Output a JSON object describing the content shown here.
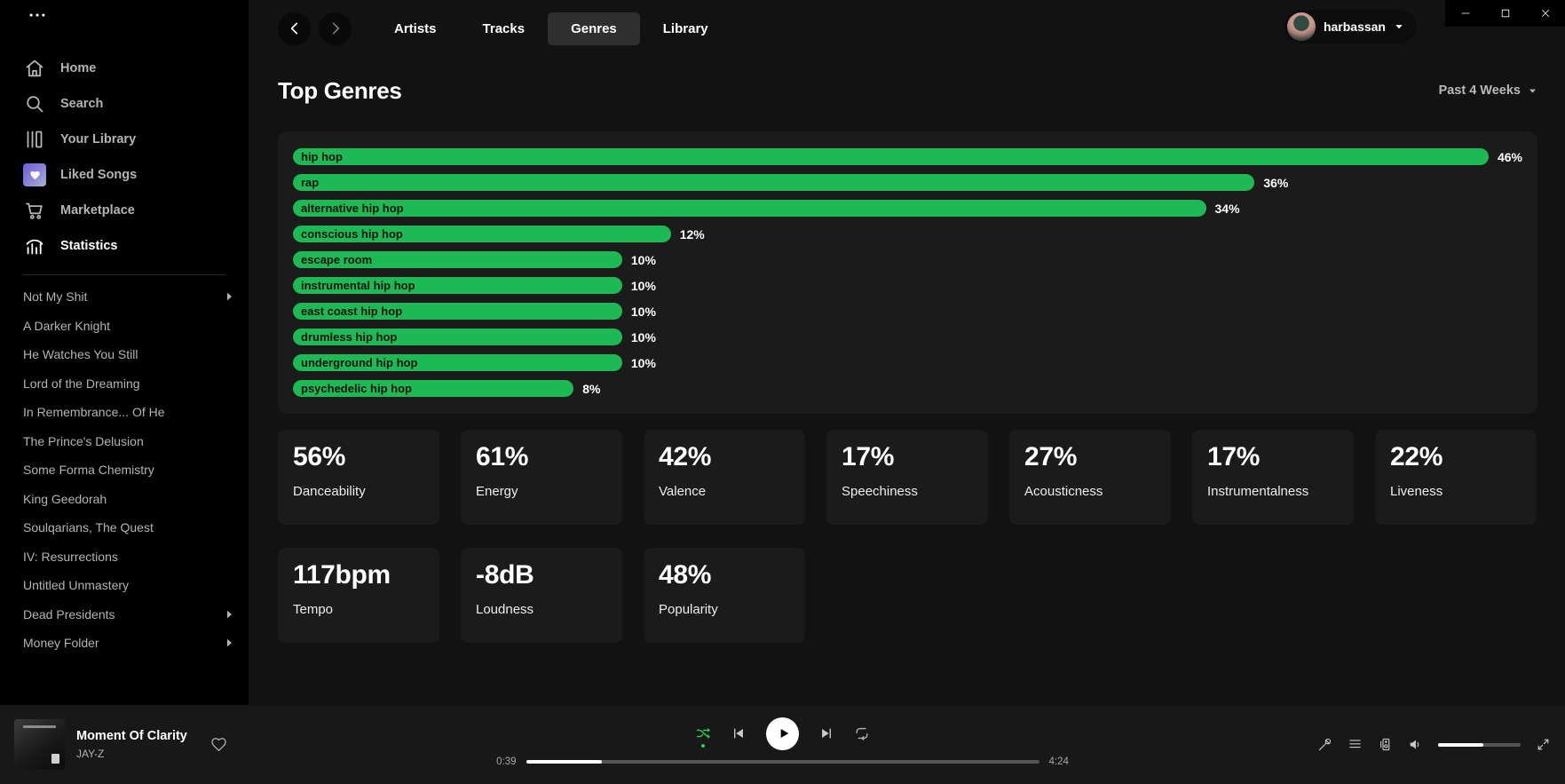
{
  "window": {
    "controls": [
      {
        "name": "minimize",
        "icon": "minimize-icon"
      },
      {
        "name": "maximize",
        "icon": "maximize-icon"
      },
      {
        "name": "close",
        "icon": "close-icon"
      }
    ]
  },
  "sidebar": {
    "menu_icon": "ellipsis-icon",
    "nav": [
      {
        "label": "Home",
        "icon": "home-icon",
        "active": false
      },
      {
        "label": "Search",
        "icon": "search-icon",
        "active": false
      },
      {
        "label": "Your Library",
        "icon": "library-icon",
        "active": false
      },
      {
        "label": "Liked Songs",
        "icon": "liked-songs-heart-icon",
        "active": false
      },
      {
        "label": "Marketplace",
        "icon": "marketplace-cart-icon",
        "active": false
      },
      {
        "label": "Statistics",
        "icon": "statistics-chart-icon",
        "active": true
      }
    ],
    "playlists": [
      {
        "label": "Not My Shit",
        "folder": true
      },
      {
        "label": "A Darker Knight",
        "folder": false
      },
      {
        "label": "He Watches You Still",
        "folder": false
      },
      {
        "label": "Lord of the Dreaming",
        "folder": false
      },
      {
        "label": "In Remembrance... Of He",
        "folder": false
      },
      {
        "label": "The Prince's Delusion",
        "folder": false
      },
      {
        "label": "Some Forma Chemistry",
        "folder": false
      },
      {
        "label": "King Geedorah",
        "folder": false
      },
      {
        "label": "Soulqarians, The Quest",
        "folder": false
      },
      {
        "label": "IV: Resurrections",
        "folder": false
      },
      {
        "label": "Untitled Unmastery",
        "folder": false
      },
      {
        "label": "Dead Presidents",
        "folder": true
      },
      {
        "label": "Money Folder",
        "folder": true
      }
    ]
  },
  "header": {
    "back_icon": "chevron-left-icon",
    "forward_icon": "chevron-right-icon",
    "tabs": [
      {
        "label": "Artists",
        "active": false
      },
      {
        "label": "Tracks",
        "active": false
      },
      {
        "label": "Genres",
        "active": true
      },
      {
        "label": "Library",
        "active": false
      }
    ],
    "user": {
      "name": "harbassan",
      "caret_icon": "caret-down-icon"
    }
  },
  "page": {
    "title": "Top Genres",
    "range_label": "Past 4 Weeks"
  },
  "chart_data": {
    "type": "bar",
    "orientation": "horizontal",
    "title": "Top Genres",
    "unit": "%",
    "categories": [
      "hip hop",
      "rap",
      "alternative hip hop",
      "conscious hip hop",
      "escape room",
      "instrumental hip hop",
      "east coast hip hop",
      "drumless hip hop",
      "underground hip hop",
      "psychedelic hip hop"
    ],
    "values": [
      46,
      36,
      34,
      12,
      10,
      10,
      10,
      10,
      10,
      8
    ],
    "value_labels": [
      "46%",
      "36%",
      "34%",
      "12%",
      "10%",
      "10%",
      "10%",
      "10%",
      "10%",
      "8%"
    ],
    "max_value": 46,
    "bar_color": "#1db954",
    "bar_label_color": "#0d120e",
    "grid": false,
    "legend": false
  },
  "stats": [
    {
      "value": "56%",
      "label": "Danceability"
    },
    {
      "value": "61%",
      "label": "Energy"
    },
    {
      "value": "42%",
      "label": "Valence"
    },
    {
      "value": "17%",
      "label": "Speechiness"
    },
    {
      "value": "27%",
      "label": "Acousticness"
    },
    {
      "value": "17%",
      "label": "Instrumentalness"
    },
    {
      "value": "22%",
      "label": "Liveness"
    },
    {
      "value": "117bpm",
      "label": "Tempo"
    },
    {
      "value": "-8dB",
      "label": "Loudness"
    },
    {
      "value": "48%",
      "label": "Popularity"
    }
  ],
  "player": {
    "track": {
      "title": "Moment Of Clarity",
      "artist": "JAY-Z"
    },
    "like_icon": "heart-outline-icon",
    "controls": [
      "shuffle-icon",
      "previous-icon",
      "play-icon",
      "next-icon",
      "repeat-icon"
    ],
    "shuffle_active_color": "#1ed760",
    "progress": {
      "current": "0:39",
      "total": "4:24",
      "percent": 14.8
    },
    "right_icons": [
      "lyrics-mic-icon",
      "queue-icon",
      "connect-device-icon",
      "volume-icon",
      "fullscreen-icon"
    ],
    "volume_percent": 55
  },
  "colors": {
    "accent_green": "#1db954",
    "bright_green": "#1ed760",
    "main_bg": "#121212",
    "panel_bg": "#1b1b1b",
    "sidebar_bg": "#000000",
    "player_bg": "#181818",
    "muted_text": "#b3b3b3"
  }
}
